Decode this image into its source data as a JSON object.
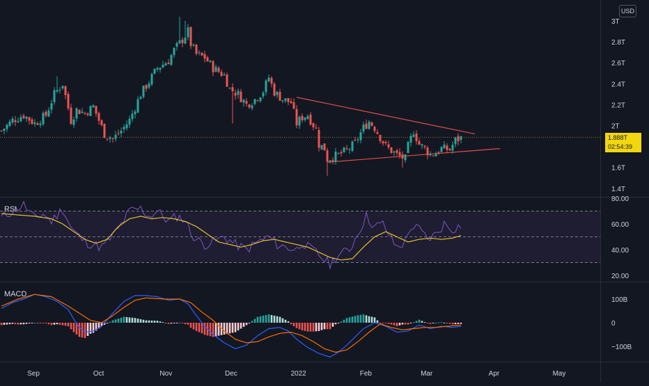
{
  "currency": "USD",
  "price_label": {
    "value": "1.888T",
    "countdown": "02:54:39"
  },
  "pane_titles": {
    "rsi": "RSI",
    "macd": "MACD"
  },
  "chart_data": [
    {
      "type": "candlestick",
      "name": "price",
      "y_ticks": [
        "3T",
        "2.8T",
        "2.6T",
        "2.4T",
        "2.2T",
        "2T",
        "1.6T",
        "1.4T"
      ],
      "y_tick_values": [
        3.0,
        2.8,
        2.6,
        2.4,
        2.2,
        2.0,
        1.6,
        1.4
      ],
      "x_ticks": [
        "Sep",
        "Oct",
        "Nov",
        "Dec",
        "2022",
        "Feb",
        "Mar",
        "Apr",
        "May"
      ],
      "last_value": 1.888,
      "unit": "T USD",
      "close_path": [
        [
          0,
          1.95
        ],
        [
          4,
          2.05
        ],
        [
          8,
          2.1
        ],
        [
          12,
          2.02
        ],
        [
          16,
          2.1
        ],
        [
          19,
          2.3
        ],
        [
          22,
          2.4
        ],
        [
          25,
          2.05
        ],
        [
          27,
          2.15
        ],
        [
          30,
          2.12
        ],
        [
          33,
          2.18
        ],
        [
          37,
          1.92
        ],
        [
          40,
          1.87
        ],
        [
          43,
          1.95
        ],
        [
          46,
          2.05
        ],
        [
          50,
          2.3
        ],
        [
          53,
          2.42
        ],
        [
          56,
          2.55
        ],
        [
          60,
          2.62
        ],
        [
          62,
          2.72
        ],
        [
          65,
          2.82
        ],
        [
          67,
          2.9
        ],
        [
          68,
          2.78
        ],
        [
          70,
          2.68
        ],
        [
          73,
          2.65
        ],
        [
          76,
          2.55
        ],
        [
          80,
          2.48
        ],
        [
          82,
          2.35
        ],
        [
          85,
          2.3
        ],
        [
          88,
          2.2
        ],
        [
          91,
          2.25
        ],
        [
          94,
          2.33
        ],
        [
          96,
          2.46
        ],
        [
          98,
          2.32
        ],
        [
          101,
          2.25
        ],
        [
          104,
          2.22
        ],
        [
          106,
          2.02
        ],
        [
          108,
          2.08
        ],
        [
          110,
          2.1
        ],
        [
          113,
          1.96
        ],
        [
          114,
          1.82
        ],
        [
          116,
          1.78
        ],
        [
          117,
          1.68
        ],
        [
          121,
          1.72
        ],
        [
          124,
          1.76
        ],
        [
          127,
          1.83
        ],
        [
          130,
          1.98
        ],
        [
          132,
          2.04
        ],
        [
          134,
          1.98
        ],
        [
          138,
          1.8
        ],
        [
          140,
          1.76
        ],
        [
          142,
          1.72
        ],
        [
          145,
          1.68
        ],
        [
          146,
          1.8
        ],
        [
          148,
          1.95
        ],
        [
          150,
          1.82
        ],
        [
          152,
          1.78
        ],
        [
          154,
          1.72
        ],
        [
          156,
          1.74
        ],
        [
          158,
          1.78
        ],
        [
          161,
          1.77
        ],
        [
          163,
          1.86
        ],
        [
          165,
          1.88
        ]
      ],
      "trendlines": [
        {
          "from": [
            106,
            2.27
          ],
          "to": [
            170,
            1.92
          ]
        },
        {
          "from": [
            117,
            1.65
          ],
          "to": [
            179,
            1.78
          ]
        }
      ],
      "spikes": [
        {
          "i": 20,
          "high": 2.47
        },
        {
          "i": 64,
          "high": 3.04
        },
        {
          "i": 66,
          "high": 3.0
        },
        {
          "i": 83,
          "low": 2.02
        },
        {
          "i": 117,
          "low": 1.52
        },
        {
          "i": 144,
          "low": 1.6
        }
      ]
    },
    {
      "type": "line",
      "name": "RSI",
      "y_ticks": [
        "80.00",
        "60.00",
        "40.00",
        "20.00"
      ],
      "y_tick_values": [
        80,
        60,
        40,
        20
      ],
      "bands": [
        70,
        50,
        30
      ],
      "rsi_path": [
        [
          0,
          65
        ],
        [
          4,
          70
        ],
        [
          8,
          75
        ],
        [
          12,
          64
        ],
        [
          15,
          68
        ],
        [
          18,
          62
        ],
        [
          22,
          72
        ],
        [
          25,
          57
        ],
        [
          28,
          50
        ],
        [
          30,
          46
        ],
        [
          33,
          44
        ],
        [
          36,
          42
        ],
        [
          38,
          46
        ],
        [
          42,
          56
        ],
        [
          46,
          70
        ],
        [
          50,
          72
        ],
        [
          53,
          66
        ],
        [
          56,
          70
        ],
        [
          60,
          62
        ],
        [
          63,
          66
        ],
        [
          66,
          63
        ],
        [
          68,
          53
        ],
        [
          70,
          48
        ],
        [
          73,
          44
        ],
        [
          76,
          46
        ],
        [
          80,
          50
        ],
        [
          84,
          44
        ],
        [
          88,
          40
        ],
        [
          92,
          46
        ],
        [
          96,
          50
        ],
        [
          99,
          44
        ],
        [
          102,
          42
        ],
        [
          106,
          40
        ],
        [
          108,
          46
        ],
        [
          110,
          42
        ],
        [
          113,
          38
        ],
        [
          116,
          32
        ],
        [
          118,
          29
        ],
        [
          121,
          36
        ],
        [
          125,
          40
        ],
        [
          128,
          53
        ],
        [
          131,
          66
        ],
        [
          134,
          58
        ],
        [
          137,
          60
        ],
        [
          140,
          48
        ],
        [
          142,
          42
        ],
        [
          145,
          46
        ],
        [
          147,
          58
        ],
        [
          150,
          56
        ],
        [
          153,
          48
        ],
        [
          156,
          52
        ],
        [
          159,
          60
        ],
        [
          162,
          56
        ],
        [
          165,
          59
        ]
      ],
      "signal_path": [
        [
          0,
          68
        ],
        [
          6,
          67
        ],
        [
          12,
          66
        ],
        [
          18,
          64
        ],
        [
          22,
          60
        ],
        [
          26,
          54
        ],
        [
          30,
          48
        ],
        [
          34,
          45
        ],
        [
          38,
          48
        ],
        [
          42,
          58
        ],
        [
          46,
          64
        ],
        [
          50,
          66
        ],
        [
          54,
          64
        ],
        [
          58,
          65
        ],
        [
          62,
          64
        ],
        [
          66,
          62
        ],
        [
          70,
          58
        ],
        [
          74,
          52
        ],
        [
          78,
          46
        ],
        [
          82,
          44
        ],
        [
          86,
          42
        ],
        [
          90,
          44
        ],
        [
          94,
          47
        ],
        [
          98,
          48
        ],
        [
          102,
          46
        ],
        [
          106,
          44
        ],
        [
          110,
          42
        ],
        [
          114,
          38
        ],
        [
          118,
          34
        ],
        [
          122,
          32
        ],
        [
          126,
          33
        ],
        [
          130,
          42
        ],
        [
          134,
          50
        ],
        [
          138,
          54
        ],
        [
          142,
          50
        ],
        [
          146,
          46
        ],
        [
          150,
          48
        ],
        [
          154,
          49
        ],
        [
          158,
          48
        ],
        [
          162,
          49
        ],
        [
          165,
          51
        ]
      ]
    },
    {
      "type": "line+bar",
      "name": "MACD",
      "y_ticks": [
        "100B",
        "0",
        "−100B"
      ],
      "y_tick_values": [
        100,
        0,
        -100
      ],
      "unit": "B",
      "macd_path": [
        [
          0,
          60
        ],
        [
          4,
          85
        ],
        [
          8,
          100
        ],
        [
          12,
          120
        ],
        [
          16,
          110
        ],
        [
          20,
          90
        ],
        [
          24,
          55
        ],
        [
          26,
          15
        ],
        [
          28,
          -20
        ],
        [
          30,
          -40
        ],
        [
          33,
          -35
        ],
        [
          36,
          -15
        ],
        [
          40,
          40
        ],
        [
          44,
          90
        ],
        [
          48,
          115
        ],
        [
          52,
          115
        ],
        [
          56,
          110
        ],
        [
          60,
          95
        ],
        [
          64,
          100
        ],
        [
          67,
          80
        ],
        [
          70,
          30
        ],
        [
          73,
          -15
        ],
        [
          76,
          -50
        ],
        [
          80,
          -85
        ],
        [
          84,
          -110
        ],
        [
          88,
          -95
        ],
        [
          92,
          -55
        ],
        [
          96,
          -25
        ],
        [
          100,
          -20
        ],
        [
          103,
          -35
        ],
        [
          106,
          -70
        ],
        [
          110,
          -105
        ],
        [
          114,
          -130
        ],
        [
          118,
          -145
        ],
        [
          121,
          -125
        ],
        [
          124,
          -95
        ],
        [
          127,
          -60
        ],
        [
          130,
          -25
        ],
        [
          134,
          0
        ],
        [
          138,
          -15
        ],
        [
          142,
          -40
        ],
        [
          146,
          -35
        ],
        [
          150,
          -10
        ],
        [
          154,
          -25
        ],
        [
          158,
          -15
        ],
        [
          162,
          -20
        ],
        [
          165,
          -15
        ]
      ],
      "signal_path": [
        [
          0,
          70
        ],
        [
          6,
          100
        ],
        [
          12,
          120
        ],
        [
          18,
          110
        ],
        [
          24,
          70
        ],
        [
          28,
          40
        ],
        [
          32,
          10
        ],
        [
          36,
          0
        ],
        [
          40,
          30
        ],
        [
          44,
          65
        ],
        [
          48,
          95
        ],
        [
          52,
          105
        ],
        [
          58,
          100
        ],
        [
          64,
          100
        ],
        [
          68,
          85
        ],
        [
          72,
          45
        ],
        [
          76,
          10
        ],
        [
          80,
          -35
        ],
        [
          84,
          -70
        ],
        [
          88,
          -85
        ],
        [
          92,
          -80
        ],
        [
          96,
          -60
        ],
        [
          100,
          -45
        ],
        [
          104,
          -40
        ],
        [
          108,
          -55
        ],
        [
          112,
          -80
        ],
        [
          116,
          -110
        ],
        [
          120,
          -125
        ],
        [
          124,
          -115
        ],
        [
          128,
          -80
        ],
        [
          132,
          -40
        ],
        [
          136,
          -5
        ],
        [
          140,
          -20
        ],
        [
          144,
          -30
        ],
        [
          148,
          -25
        ],
        [
          152,
          -20
        ],
        [
          156,
          -20
        ],
        [
          160,
          -15
        ],
        [
          165,
          -10
        ]
      ]
    }
  ]
}
